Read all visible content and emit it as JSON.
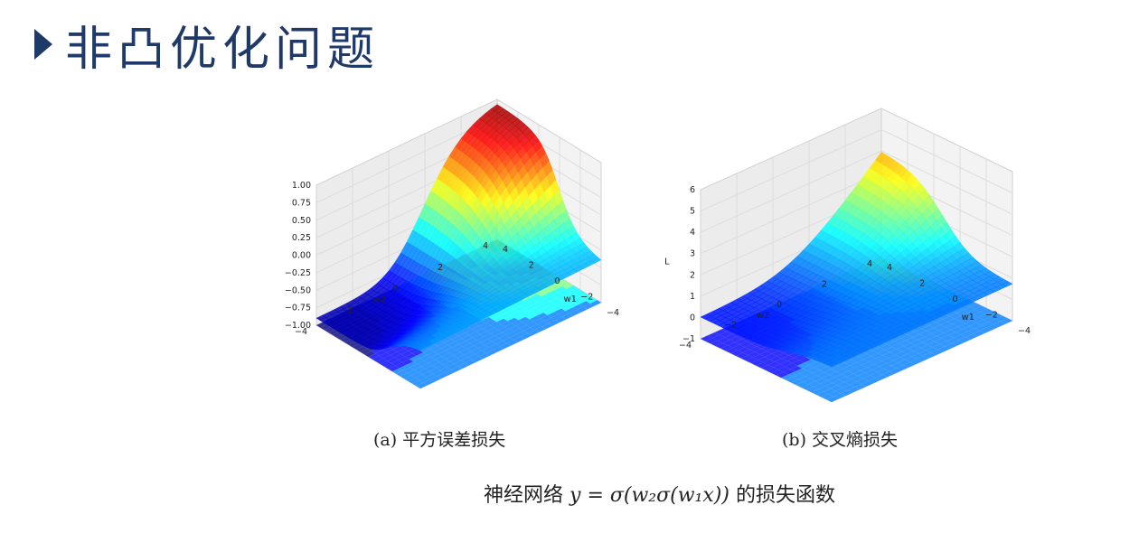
{
  "title": "非凸优化问题",
  "chart_data": [
    {
      "type": "surface3d",
      "caption": "(a) 平方误差损失",
      "xlabel": "w1",
      "ylabel": "w2",
      "zlabel": "",
      "x_ticks": [
        "4",
        "2",
        "0",
        "−2",
        "−4"
      ],
      "y_ticks": [
        "−4",
        "−2",
        "0",
        "2",
        "4"
      ],
      "z_ticks": [
        "−1.00",
        "−0.75",
        "−0.50",
        "−0.25",
        "0.00",
        "0.25",
        "0.50",
        "0.75",
        "1.00"
      ],
      "zlim": [
        -1,
        1
      ],
      "colormap": "jet"
    },
    {
      "type": "surface3d",
      "caption": "(b) 交叉熵损失",
      "xlabel": "w1",
      "ylabel": "w2",
      "zlabel": "L",
      "x_ticks": [
        "4",
        "2",
        "0",
        "−2",
        "−4"
      ],
      "y_ticks": [
        "−4",
        "−2",
        "0",
        "2",
        "4"
      ],
      "z_ticks": [
        "−1",
        "0",
        "1",
        "2",
        "3",
        "4",
        "5",
        "6"
      ],
      "zlim": [
        -1,
        6
      ],
      "colormap": "jet"
    }
  ],
  "formula": {
    "prefix": "神经网络",
    "expr": "y = σ(w₂σ(w₁x))",
    "suffix": "的损失函数"
  }
}
